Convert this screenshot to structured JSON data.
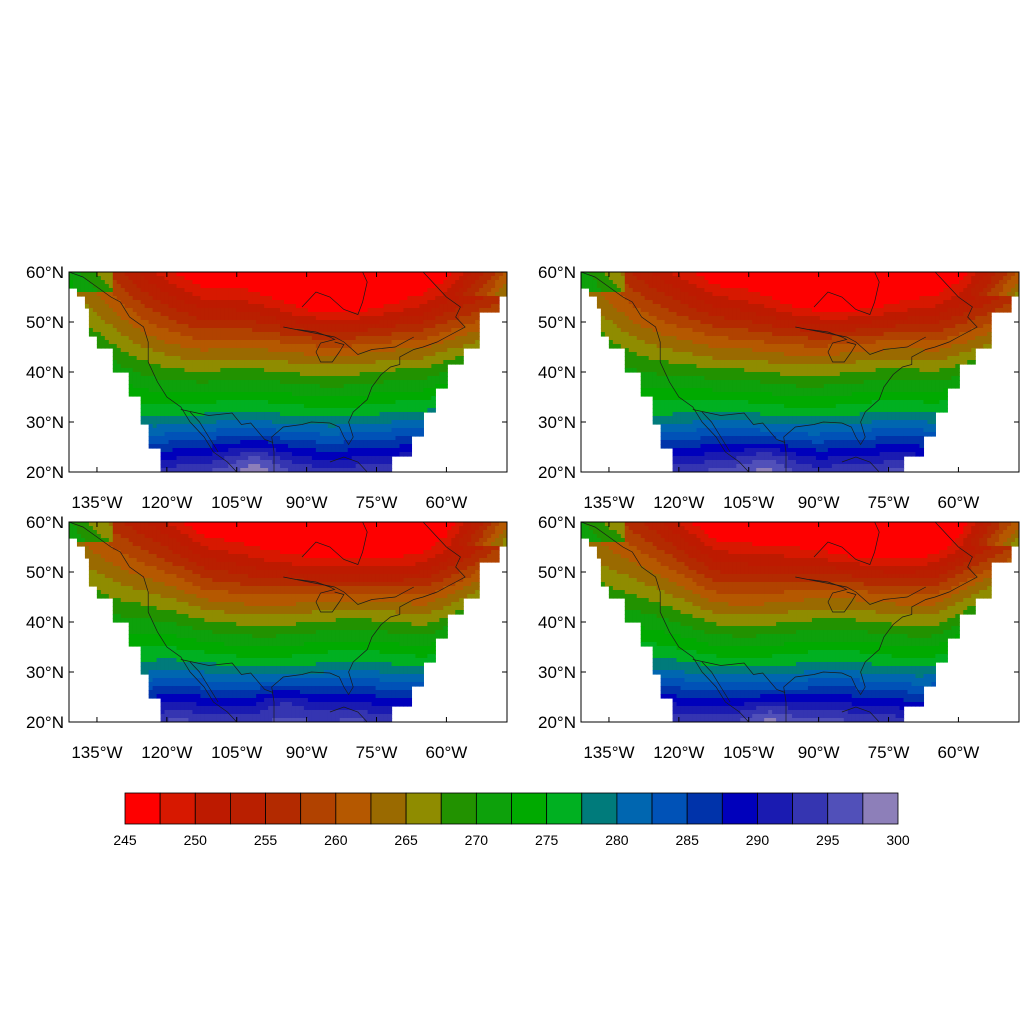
{
  "figure": {
    "panels": [
      {
        "id": "top-left",
        "hot_center": [
          -82,
          54
        ],
        "warm_pool": [
          -101,
          22
        ],
        "variant": 0
      },
      {
        "id": "top-right",
        "hot_center": [
          -83,
          54
        ],
        "warm_pool": [
          -101,
          22
        ],
        "variant": 1
      },
      {
        "id": "bottom-left",
        "hot_center": [
          -80,
          53
        ],
        "warm_pool": [
          -95,
          24
        ],
        "variant": 2
      },
      {
        "id": "bottom-right",
        "hot_center": [
          -78,
          55
        ],
        "warm_pool": [
          -101,
          21
        ],
        "variant": 3
      }
    ],
    "lat_ticks": [
      "60°N",
      "50°N",
      "40°N",
      "30°N",
      "20°N"
    ],
    "lat_values": [
      60,
      50,
      40,
      30,
      20
    ],
    "lon_ticks": [
      "135°W",
      "120°W",
      "105°W",
      "90°W",
      "75°W",
      "60°W"
    ],
    "lon_values": [
      -135,
      -120,
      -105,
      -90,
      -75,
      -60
    ],
    "lon_range": [
      -141,
      -47
    ],
    "lat_range": [
      20,
      60
    ]
  },
  "colorbar": {
    "levels": [
      245,
      247.5,
      250,
      252.5,
      255,
      257.5,
      260,
      262.5,
      265,
      267.5,
      270,
      272.5,
      275,
      277.5,
      280,
      282.5,
      285,
      287.5,
      290,
      292.5,
      295,
      297.5,
      300
    ],
    "labels": [
      "245",
      "250",
      "255",
      "260",
      "265",
      "270",
      "275",
      "280",
      "285",
      "290",
      "295",
      "300"
    ],
    "label_values": [
      245,
      250,
      255,
      260,
      265,
      270,
      275,
      280,
      285,
      290,
      295,
      300
    ],
    "colors": [
      "#fe0000",
      "#d71800",
      "#bd1a00",
      "#b91f00",
      "#b32a00",
      "#b14200",
      "#b55800",
      "#9a6a00",
      "#8f8c00",
      "#229200",
      "#0da10b",
      "#00aa00",
      "#00b021",
      "#007b7b",
      "#0066b0",
      "#0052b7",
      "#0033aa",
      "#0000bb",
      "#1a1bb1",
      "#3535b1",
      "#5150b9",
      "#8d7fb9"
    ]
  }
}
